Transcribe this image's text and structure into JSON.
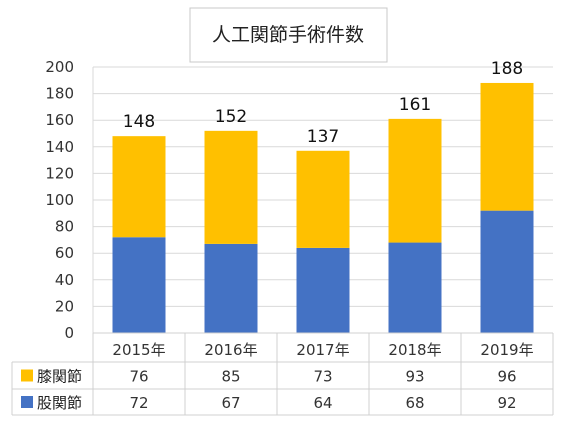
{
  "chart_data": {
    "type": "bar",
    "stacked": true,
    "title": "人工関節手術件数",
    "categories": [
      "2015年",
      "2016年",
      "2017年",
      "2018年",
      "2019年"
    ],
    "series": [
      {
        "name": "股関節",
        "values": [
          72,
          67,
          64,
          68,
          92
        ],
        "color": "#4472C4"
      },
      {
        "name": "膝関節",
        "values": [
          76,
          85,
          73,
          93,
          96
        ],
        "color": "#FFC000"
      }
    ],
    "totals": [
      148,
      152,
      137,
      161,
      188
    ],
    "ylim": [
      0,
      200
    ],
    "yticks": [
      0,
      20,
      40,
      60,
      80,
      100,
      120,
      140,
      160,
      180,
      200
    ],
    "grid": true,
    "legend": "data-table",
    "table_row_order": [
      "膝関節",
      "股関節"
    ]
  }
}
